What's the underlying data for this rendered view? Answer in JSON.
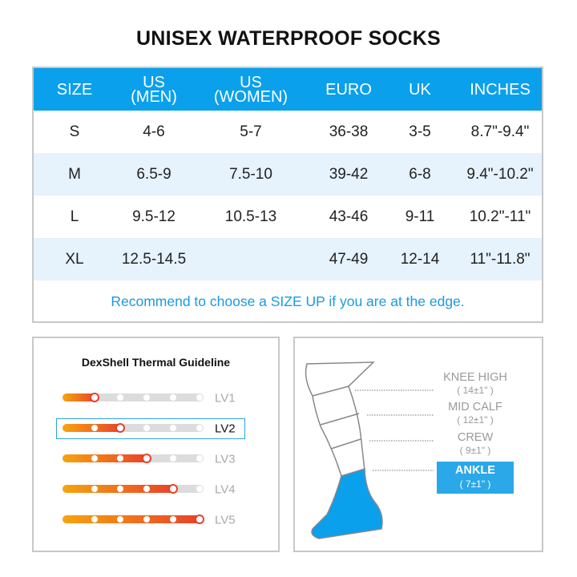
{
  "title": "UNISEX WATERPROOF SOCKS",
  "size_table": {
    "headers": [
      "SIZE",
      "US\n(MEN)",
      "US\n(WOMEN)",
      "EURO",
      "UK",
      "INCHES"
    ],
    "rows": [
      [
        "S",
        "4-6",
        "5-7",
        "36-38",
        "3-5",
        "8.7\"-9.4\""
      ],
      [
        "M",
        "6.5-9",
        "7.5-10",
        "39-42",
        "6-8",
        "9.4\"-10.2\""
      ],
      [
        "L",
        "9.5-12",
        "10.5-13",
        "43-46",
        "9-11",
        "10.2\"-11\""
      ],
      [
        "XL",
        "12.5-14.5",
        "",
        "47-49",
        "12-14",
        "11\"-11.8\""
      ]
    ],
    "note": "Recommend to choose a SIZE UP if you are at the edge.",
    "header_color": "#0aa0ec"
  },
  "thermal": {
    "title": "DexShell Thermal Guideline",
    "levels": [
      {
        "label": "LV1",
        "value": 1
      },
      {
        "label": "LV2",
        "value": 2
      },
      {
        "label": "LV3",
        "value": 3
      },
      {
        "label": "LV4",
        "value": 4
      },
      {
        "label": "LV5",
        "value": 5
      }
    ],
    "max": 5,
    "selected": "LV2"
  },
  "heights": {
    "items": [
      {
        "name": "KNEE HIGH",
        "size": "( 14±1\" )"
      },
      {
        "name": "MID CALF",
        "size": "( 12±1\" )"
      },
      {
        "name": "CREW",
        "size": "( 9±1\" )"
      },
      {
        "name": "ANKLE",
        "size": "( 7±1\" )"
      }
    ],
    "selected": "ANKLE",
    "accent": "#2aa8e8"
  }
}
